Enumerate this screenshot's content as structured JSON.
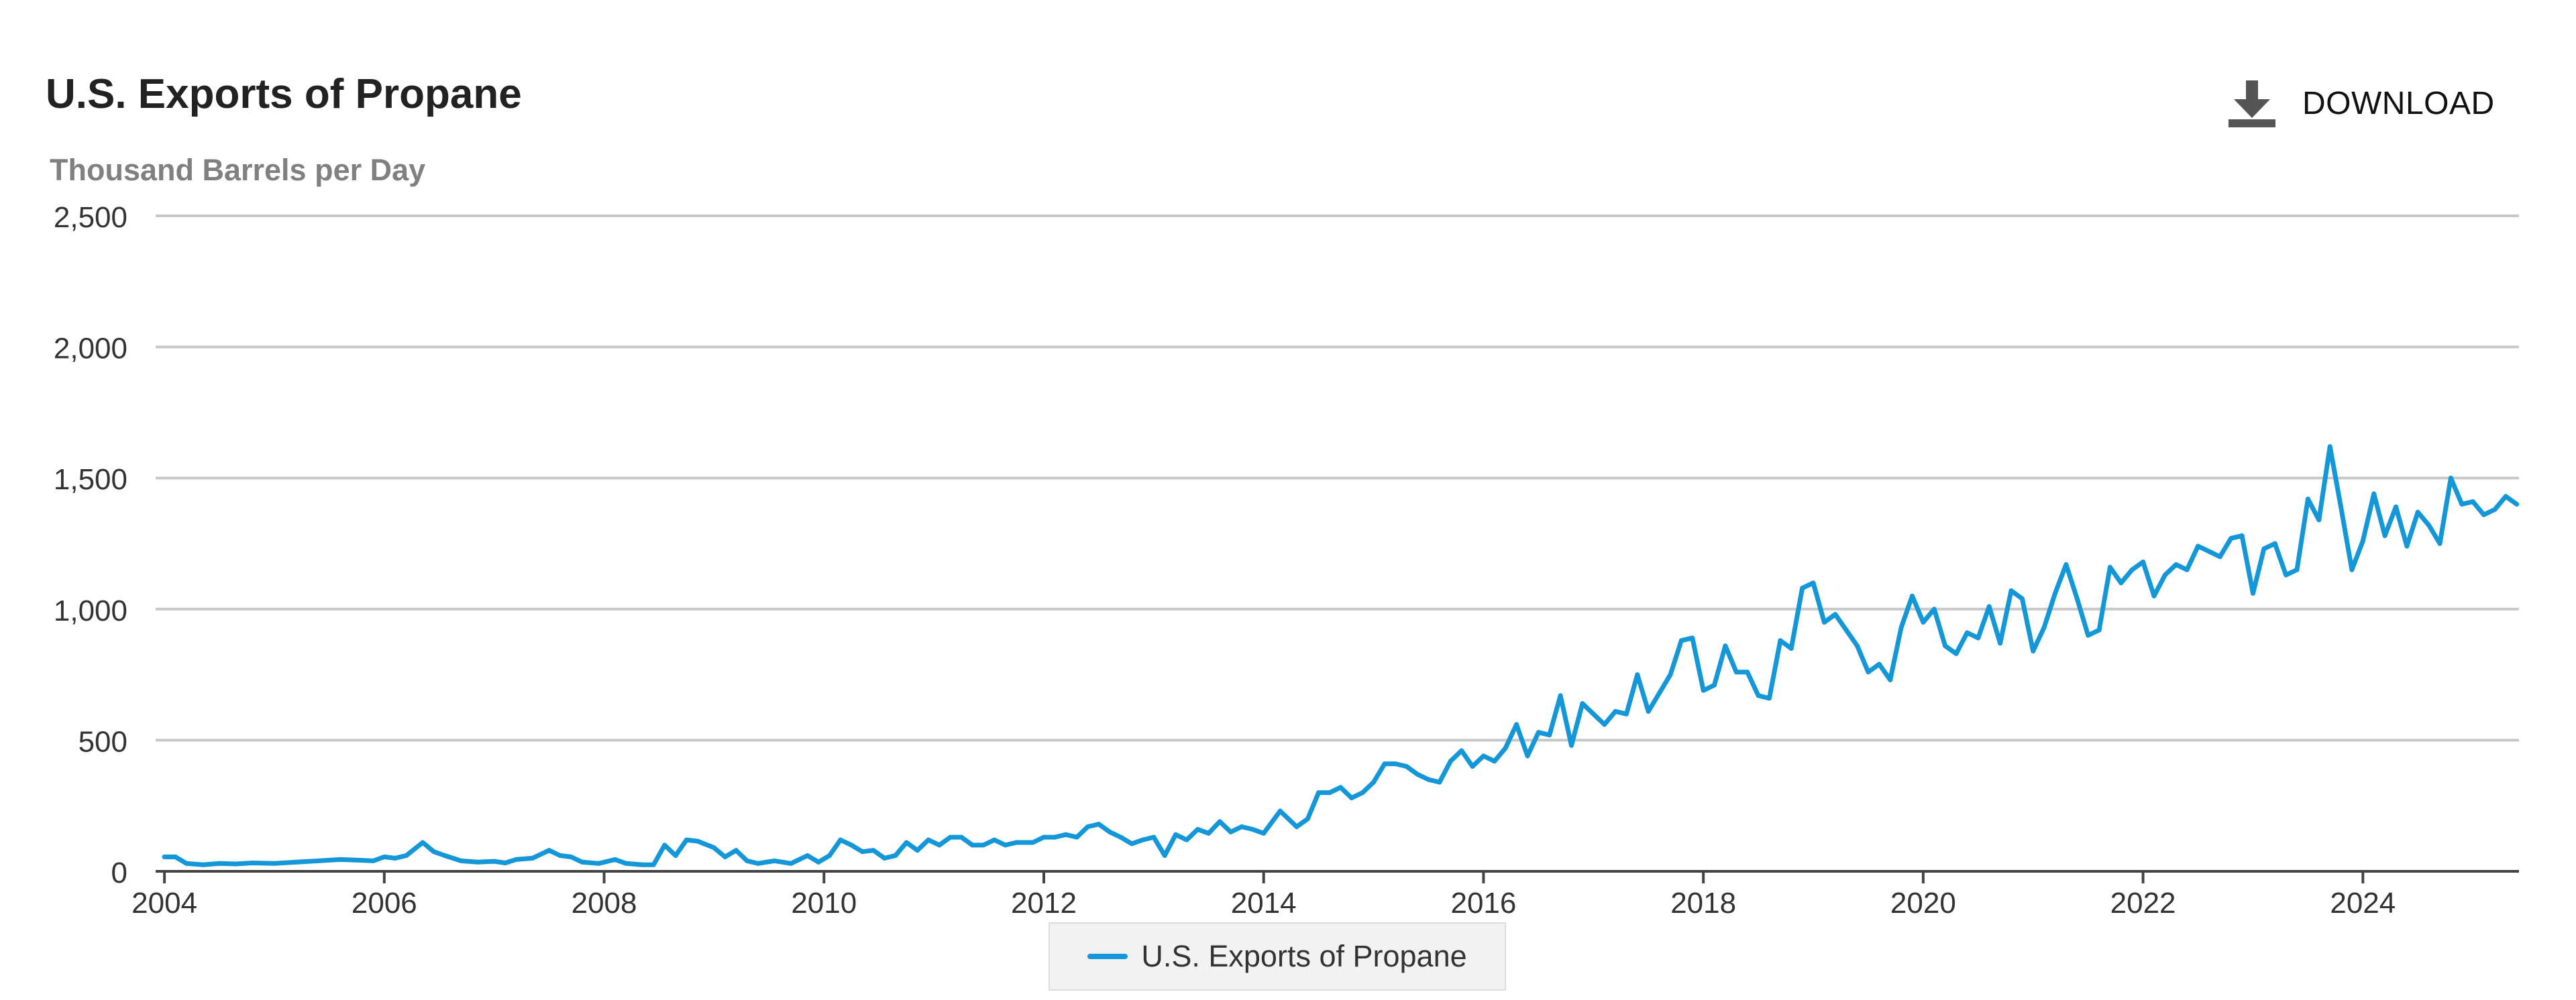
{
  "header": {
    "title": "U.S. Exports of Propane",
    "download_label": "DOWNLOAD"
  },
  "colors": {
    "series": "#1497d8",
    "grid": "#c8c8c8",
    "axis": "#333333"
  },
  "chart_data": {
    "type": "line",
    "title": "U.S. Exports of Propane",
    "ylabel": "Thousand Barrels per Day",
    "xlabel": "",
    "grid": true,
    "legend_position": "bottom-center",
    "xlim": [
      2003.92,
      2025.42
    ],
    "ylim": [
      0,
      2500
    ],
    "x_ticks": [
      2004,
      2006,
      2008,
      2010,
      2012,
      2014,
      2016,
      2018,
      2020,
      2022,
      2024
    ],
    "x_tick_labels": [
      "2004",
      "2006",
      "2008",
      "2010",
      "2012",
      "2014",
      "2016",
      "2018",
      "2020",
      "2022",
      "2024"
    ],
    "y_ticks": [
      0,
      500,
      1000,
      1500,
      2000,
      2500
    ],
    "y_tick_labels": [
      "0",
      "500",
      "1,000",
      "1,500",
      "2,000",
      "2,500"
    ],
    "series": [
      {
        "name": "U.S. Exports of Propane",
        "points": [
          [
            2004.0,
            55
          ],
          [
            2004.1,
            55
          ],
          [
            2004.2,
            30
          ],
          [
            2004.35,
            25
          ],
          [
            2004.5,
            30
          ],
          [
            2004.65,
            28
          ],
          [
            2004.8,
            32
          ],
          [
            2005.0,
            30
          ],
          [
            2005.2,
            35
          ],
          [
            2005.4,
            40
          ],
          [
            2005.6,
            45
          ],
          [
            2005.8,
            42
          ],
          [
            2005.9,
            40
          ],
          [
            2006.0,
            55
          ],
          [
            2006.1,
            50
          ],
          [
            2006.2,
            60
          ],
          [
            2006.35,
            110
          ],
          [
            2006.45,
            75
          ],
          [
            2006.55,
            60
          ],
          [
            2006.7,
            40
          ],
          [
            2006.85,
            35
          ],
          [
            2007.0,
            38
          ],
          [
            2007.1,
            32
          ],
          [
            2007.2,
            45
          ],
          [
            2007.35,
            50
          ],
          [
            2007.5,
            80
          ],
          [
            2007.6,
            60
          ],
          [
            2007.7,
            55
          ],
          [
            2007.8,
            35
          ],
          [
            2007.95,
            30
          ],
          [
            2008.1,
            45
          ],
          [
            2008.2,
            30
          ],
          [
            2008.35,
            25
          ],
          [
            2008.45,
            25
          ],
          [
            2008.55,
            100
          ],
          [
            2008.65,
            60
          ],
          [
            2008.75,
            120
          ],
          [
            2008.85,
            115
          ],
          [
            2009.0,
            90
          ],
          [
            2009.1,
            55
          ],
          [
            2009.2,
            80
          ],
          [
            2009.3,
            40
          ],
          [
            2009.4,
            30
          ],
          [
            2009.55,
            40
          ],
          [
            2009.7,
            30
          ],
          [
            2009.85,
            60
          ],
          [
            2009.95,
            35
          ],
          [
            2010.05,
            60
          ],
          [
            2010.15,
            120
          ],
          [
            2010.25,
            100
          ],
          [
            2010.35,
            75
          ],
          [
            2010.45,
            80
          ],
          [
            2010.55,
            50
          ],
          [
            2010.65,
            60
          ],
          [
            2010.75,
            110
          ],
          [
            2010.85,
            80
          ],
          [
            2010.95,
            120
          ],
          [
            2011.05,
            100
          ],
          [
            2011.15,
            130
          ],
          [
            2011.25,
            130
          ],
          [
            2011.35,
            100
          ],
          [
            2011.45,
            100
          ],
          [
            2011.55,
            120
          ],
          [
            2011.65,
            100
          ],
          [
            2011.75,
            110
          ],
          [
            2011.9,
            110
          ],
          [
            2012.0,
            130
          ],
          [
            2012.1,
            130
          ],
          [
            2012.2,
            140
          ],
          [
            2012.3,
            130
          ],
          [
            2012.4,
            170
          ],
          [
            2012.5,
            180
          ],
          [
            2012.6,
            150
          ],
          [
            2012.7,
            130
          ],
          [
            2012.8,
            105
          ],
          [
            2012.9,
            120
          ],
          [
            2013.0,
            130
          ],
          [
            2013.1,
            60
          ],
          [
            2013.2,
            140
          ],
          [
            2013.3,
            120
          ],
          [
            2013.4,
            160
          ],
          [
            2013.5,
            145
          ],
          [
            2013.6,
            190
          ],
          [
            2013.7,
            150
          ],
          [
            2013.8,
            170
          ],
          [
            2013.9,
            160
          ],
          [
            2014.0,
            145
          ],
          [
            2014.15,
            230
          ],
          [
            2014.3,
            170
          ],
          [
            2014.4,
            200
          ],
          [
            2014.5,
            300
          ],
          [
            2014.6,
            300
          ],
          [
            2014.7,
            320
          ],
          [
            2014.8,
            280
          ],
          [
            2014.9,
            300
          ],
          [
            2015.0,
            340
          ],
          [
            2015.1,
            410
          ],
          [
            2015.2,
            410
          ],
          [
            2015.3,
            400
          ],
          [
            2015.4,
            370
          ],
          [
            2015.5,
            350
          ],
          [
            2015.6,
            340
          ],
          [
            2015.7,
            420
          ],
          [
            2015.8,
            460
          ],
          [
            2015.9,
            400
          ],
          [
            2016.0,
            440
          ],
          [
            2016.1,
            420
          ],
          [
            2016.2,
            470
          ],
          [
            2016.3,
            560
          ],
          [
            2016.4,
            440
          ],
          [
            2016.5,
            530
          ],
          [
            2016.6,
            520
          ],
          [
            2016.7,
            670
          ],
          [
            2016.8,
            480
          ],
          [
            2016.9,
            640
          ],
          [
            2017.0,
            600
          ],
          [
            2017.1,
            560
          ],
          [
            2017.2,
            610
          ],
          [
            2017.3,
            600
          ],
          [
            2017.4,
            750
          ],
          [
            2017.5,
            610
          ],
          [
            2017.6,
            680
          ],
          [
            2017.7,
            750
          ],
          [
            2017.8,
            880
          ],
          [
            2017.9,
            890
          ],
          [
            2018.0,
            690
          ],
          [
            2018.1,
            710
          ],
          [
            2018.2,
            860
          ],
          [
            2018.3,
            760
          ],
          [
            2018.4,
            760
          ],
          [
            2018.5,
            670
          ],
          [
            2018.6,
            660
          ],
          [
            2018.7,
            880
          ],
          [
            2018.8,
            850
          ],
          [
            2018.9,
            1080
          ],
          [
            2019.0,
            1100
          ],
          [
            2019.1,
            950
          ],
          [
            2019.2,
            980
          ],
          [
            2019.3,
            920
          ],
          [
            2019.4,
            860
          ],
          [
            2019.5,
            760
          ],
          [
            2019.6,
            790
          ],
          [
            2019.7,
            730
          ],
          [
            2019.8,
            930
          ],
          [
            2019.9,
            1050
          ],
          [
            2020.0,
            950
          ],
          [
            2020.1,
            1000
          ],
          [
            2020.2,
            860
          ],
          [
            2020.3,
            830
          ],
          [
            2020.4,
            910
          ],
          [
            2020.5,
            890
          ],
          [
            2020.6,
            1010
          ],
          [
            2020.7,
            870
          ],
          [
            2020.8,
            1070
          ],
          [
            2020.9,
            1040
          ],
          [
            2021.0,
            840
          ],
          [
            2021.1,
            930
          ],
          [
            2021.2,
            1060
          ],
          [
            2021.3,
            1170
          ],
          [
            2021.4,
            1040
          ],
          [
            2021.5,
            900
          ],
          [
            2021.6,
            920
          ],
          [
            2021.7,
            1160
          ],
          [
            2021.8,
            1100
          ],
          [
            2021.9,
            1150
          ],
          [
            2022.0,
            1180
          ],
          [
            2022.1,
            1050
          ],
          [
            2022.2,
            1130
          ],
          [
            2022.3,
            1170
          ],
          [
            2022.4,
            1150
          ],
          [
            2022.5,
            1240
          ],
          [
            2022.6,
            1220
          ],
          [
            2022.7,
            1200
          ],
          [
            2022.8,
            1270
          ],
          [
            2022.9,
            1280
          ],
          [
            2023.0,
            1060
          ],
          [
            2023.1,
            1230
          ],
          [
            2023.2,
            1250
          ],
          [
            2023.3,
            1130
          ],
          [
            2023.4,
            1150
          ],
          [
            2023.5,
            1420
          ],
          [
            2023.6,
            1340
          ],
          [
            2023.7,
            1620
          ],
          [
            2023.8,
            1390
          ],
          [
            2023.9,
            1150
          ],
          [
            2024.0,
            1260
          ],
          [
            2024.1,
            1440
          ],
          [
            2024.2,
            1280
          ],
          [
            2024.3,
            1390
          ],
          [
            2024.4,
            1240
          ],
          [
            2024.5,
            1370
          ],
          [
            2024.6,
            1320
          ],
          [
            2024.7,
            1250
          ],
          [
            2024.8,
            1500
          ],
          [
            2024.9,
            1400
          ],
          [
            2025.0,
            1410
          ],
          [
            2025.1,
            1360
          ],
          [
            2025.2,
            1380
          ],
          [
            2025.3,
            1430
          ],
          [
            2025.4,
            1400
          ]
        ]
      }
    ]
  }
}
